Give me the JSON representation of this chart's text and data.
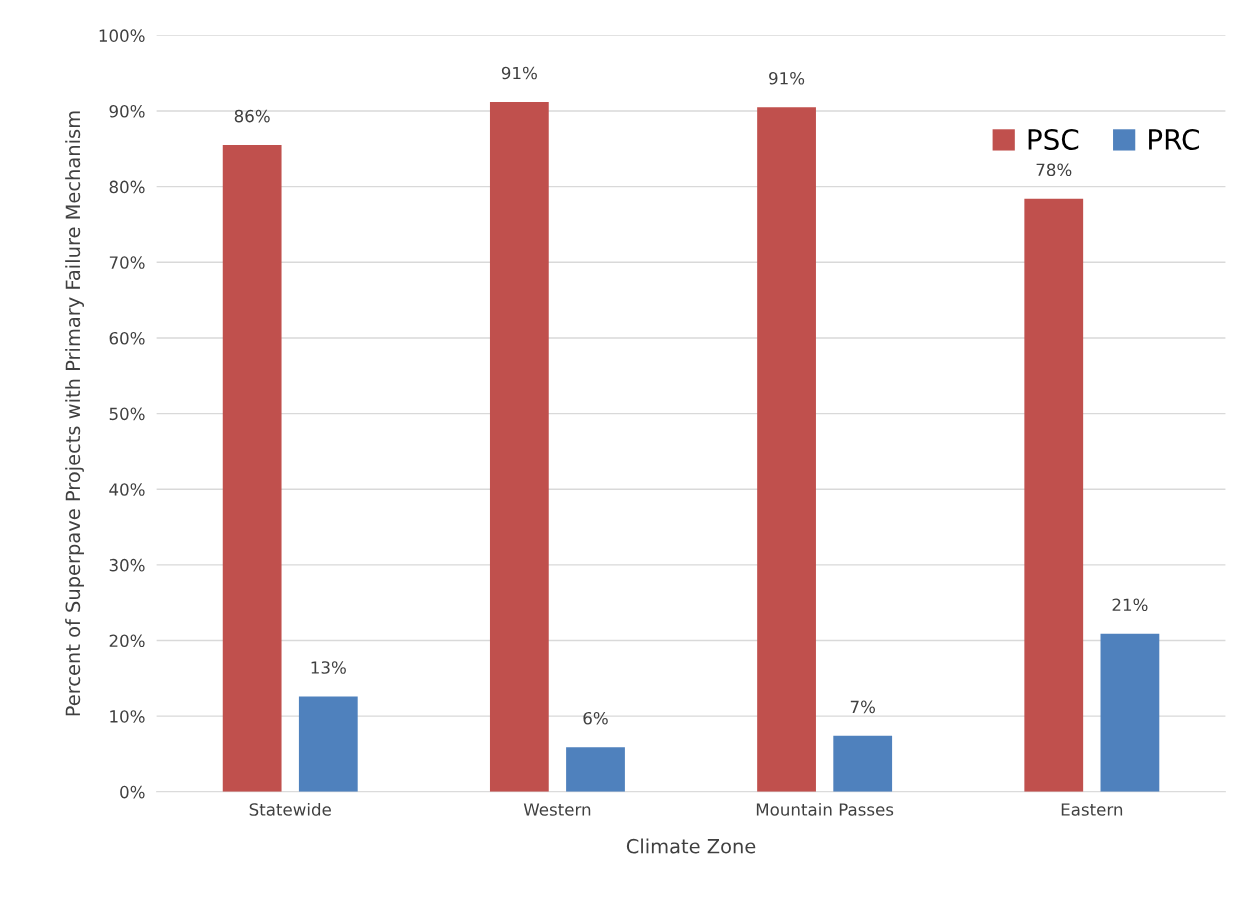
{
  "chart_data": {
    "type": "bar",
    "xlabel": "Climate Zone",
    "ylabel": "Percent of Superpave Projects with Primary Failure Mechanism",
    "categories": [
      "Statewide",
      "Western",
      "Mountain Passes",
      "Eastern"
    ],
    "series": [
      {
        "name": "PSC",
        "color": "#c0504d",
        "values": [
          85.5,
          91.2,
          90.5,
          78.4
        ],
        "value_labels": [
          "86%",
          "91%",
          "91%",
          "78%"
        ]
      },
      {
        "name": "PRC",
        "color": "#4f81bd",
        "values": [
          12.6,
          5.9,
          7.4,
          20.9
        ],
        "value_labels": [
          "13%",
          "6%",
          "7%",
          "21%"
        ]
      }
    ],
    "ylim": [
      0,
      100
    ],
    "yticks": [
      {
        "value": 0,
        "label": "0%"
      },
      {
        "value": 10,
        "label": "10%"
      },
      {
        "value": 20,
        "label": "20%"
      },
      {
        "value": 30,
        "label": "30%"
      },
      {
        "value": 40,
        "label": "40%"
      },
      {
        "value": 50,
        "label": "50%"
      },
      {
        "value": 60,
        "label": "60%"
      },
      {
        "value": 70,
        "label": "70%"
      },
      {
        "value": 80,
        "label": "80%"
      },
      {
        "value": 90,
        "label": "90%"
      },
      {
        "value": 100,
        "label": "100%"
      }
    ],
    "grid": "y",
    "legend": "top right"
  }
}
